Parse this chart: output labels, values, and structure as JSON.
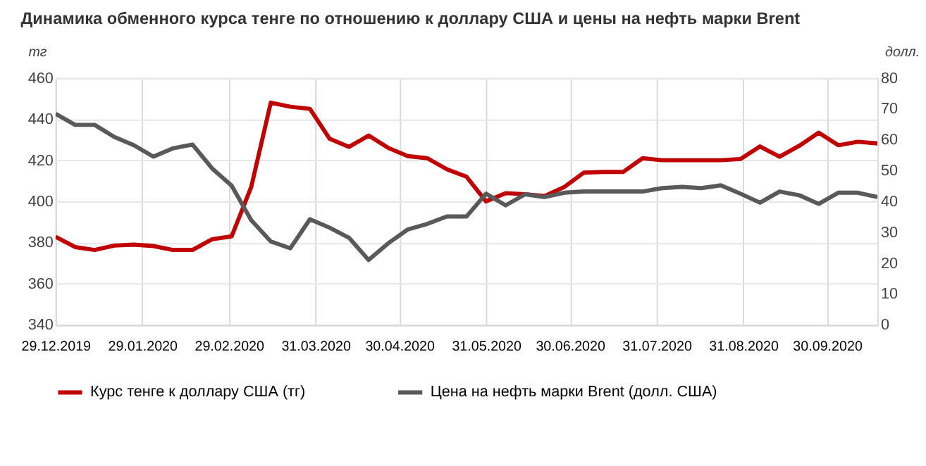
{
  "chart_data": {
    "type": "line",
    "title": "Динамика обменного курса тенге по отношению к доллару США и цены на нефть марки Brent",
    "ylabel": "тг",
    "y2label": "долл.",
    "x": [
      "2019-12-29",
      "2020-01-05",
      "2020-01-12",
      "2020-01-19",
      "2020-01-26",
      "2020-02-02",
      "2020-02-09",
      "2020-02-16",
      "2020-02-23",
      "2020-03-01",
      "2020-03-08",
      "2020-03-15",
      "2020-03-22",
      "2020-03-29",
      "2020-04-05",
      "2020-04-12",
      "2020-04-19",
      "2020-04-26",
      "2020-05-03",
      "2020-05-10",
      "2020-05-17",
      "2020-05-24",
      "2020-05-31",
      "2020-06-07",
      "2020-06-14",
      "2020-06-21",
      "2020-06-28",
      "2020-07-05",
      "2020-07-12",
      "2020-07-19",
      "2020-07-26",
      "2020-08-02",
      "2020-08-09",
      "2020-08-16",
      "2020-08-23",
      "2020-08-30",
      "2020-09-06",
      "2020-09-13",
      "2020-09-20",
      "2020-09-27",
      "2020-10-04",
      "2020-10-11",
      "2020-10-18"
    ],
    "series": [
      {
        "name": "Курс тенге к доллару США (тг)",
        "color": "#c00000",
        "values": [
          382.8,
          377.8,
          376.4,
          378.5,
          379,
          378.3,
          376.4,
          376.4,
          381.6,
          383,
          407,
          448,
          446,
          445,
          430.5,
          426.5,
          432,
          426,
          422,
          421,
          415.6,
          412,
          400,
          404,
          403.5,
          402.6,
          407,
          414,
          414.3,
          414.3,
          421,
          420,
          420,
          420,
          420,
          420.6,
          426.7,
          421.7,
          427,
          433.4,
          427.3,
          429,
          428.2
        ]
      },
      {
        "name": "Цена на нефть марки Brent (долл. США)",
        "color": "#595959",
        "axis": "y2",
        "values": [
          68.4,
          64.8,
          64.8,
          60.9,
          58.2,
          54.5,
          57.2,
          58.4,
          50.7,
          45.1,
          33.9,
          27,
          24.8,
          34.2,
          31.5,
          28.2,
          21,
          26.4,
          30.9,
          32.7,
          35.1,
          35.1,
          42.5,
          38.7,
          42.3,
          41.4,
          42.8,
          43.2,
          43.2,
          43.2,
          43.2,
          44.3,
          44.7,
          44.3,
          45.2,
          42.5,
          39.6,
          43.2,
          42,
          39.2,
          42.8,
          42.8,
          41.4
        ]
      }
    ],
    "xlim": [
      "2019-12-29",
      "2020-10-18"
    ],
    "xticks": [
      {
        "value": "2019-12-29",
        "label": "29.12.2019"
      },
      {
        "value": "2020-01-29",
        "label": "29.01.2020"
      },
      {
        "value": "2020-02-29",
        "label": "29.02.2020"
      },
      {
        "value": "2020-03-31",
        "label": "31.03.2020"
      },
      {
        "value": "2020-04-30",
        "label": "30.04.2020"
      },
      {
        "value": "2020-05-31",
        "label": "31.05.2020"
      },
      {
        "value": "2020-06-30",
        "label": "30.06.2020"
      },
      {
        "value": "2020-07-31",
        "label": "31.07.2020"
      },
      {
        "value": "2020-08-31",
        "label": "31.08.2020"
      },
      {
        "value": "2020-09-30",
        "label": "30.09.2020"
      }
    ],
    "ylim": [
      340,
      460
    ],
    "yticks": [
      340,
      360,
      380,
      400,
      420,
      440,
      460
    ],
    "y2lim": [
      0,
      80
    ],
    "y2ticks": [
      0,
      10,
      20,
      30,
      40,
      50,
      60,
      70,
      80
    ],
    "grid": true,
    "legend": "bottom",
    "line_style": "solid",
    "marker": "none"
  }
}
